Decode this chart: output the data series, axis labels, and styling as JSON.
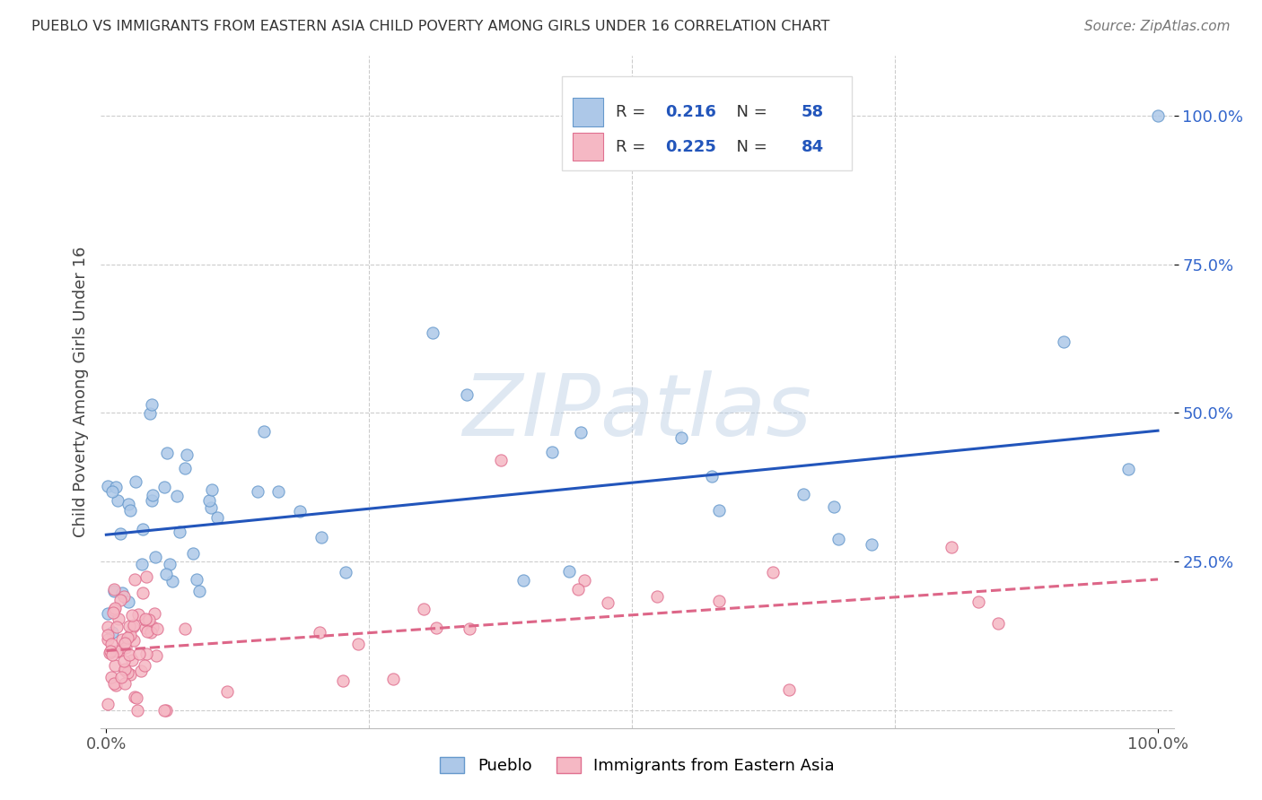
{
  "title": "PUEBLO VS IMMIGRANTS FROM EASTERN ASIA CHILD POVERTY AMONG GIRLS UNDER 16 CORRELATION CHART",
  "source": "Source: ZipAtlas.com",
  "ylabel": "Child Poverty Among Girls Under 16",
  "watermark": "ZIPatlas",
  "legend_R1": "0.216",
  "legend_N1": "58",
  "legend_R2": "0.225",
  "legend_N2": "84",
  "legend_label1": "Pueblo",
  "legend_label2": "Immigrants from Eastern Asia",
  "pueblo_color": "#adc8e8",
  "pueblo_edge": "#6699cc",
  "immigrant_color": "#f5b8c4",
  "immigrant_edge": "#e07090",
  "line1_color": "#2255bb",
  "line2_color": "#dd6688",
  "title_color": "#333333",
  "source_color": "#777777",
  "tick_color_y": "#3366cc",
  "tick_color_x": "#555555",
  "grid_color": "#cccccc",
  "bg_color": "#ffffff",
  "line1_intercept": 0.295,
  "line1_slope": 0.175,
  "line2_intercept": 0.1,
  "line2_slope": 0.12
}
